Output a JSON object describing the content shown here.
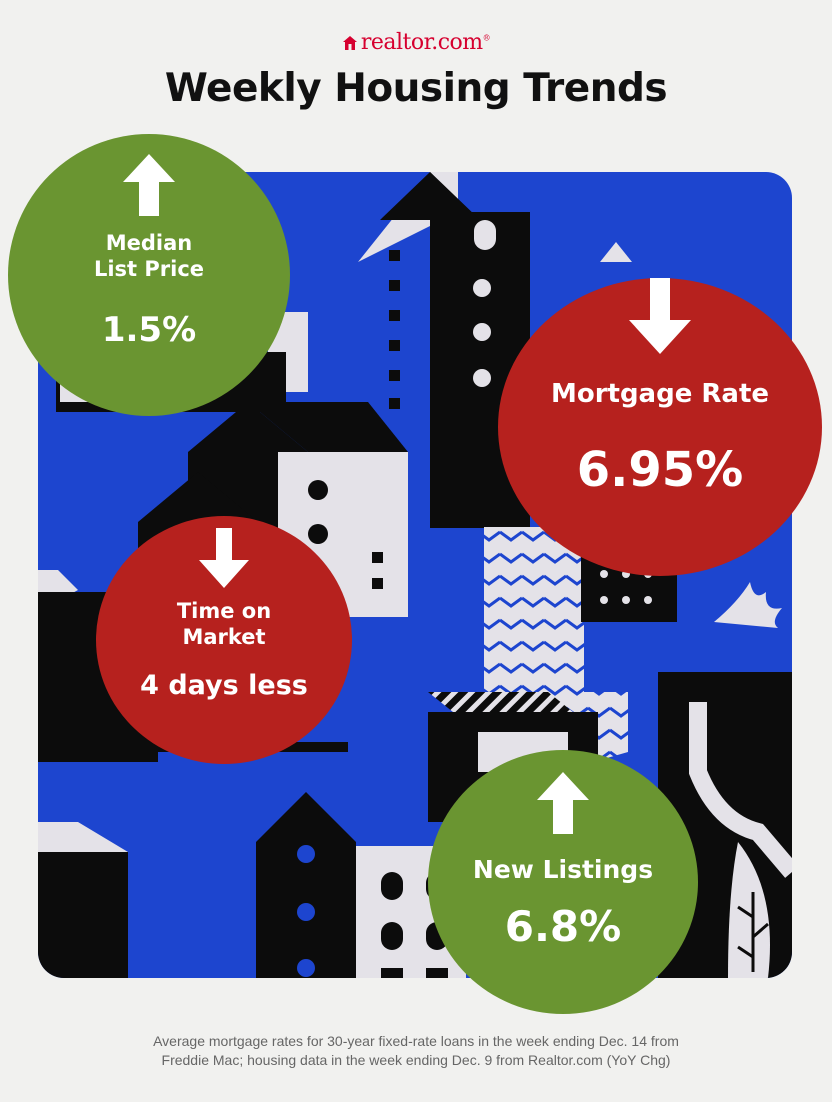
{
  "brand": {
    "name": "realtor.com",
    "color": "#d6002f",
    "icon": "house-logo-icon"
  },
  "title": "Weekly Housing Trends",
  "stats": {
    "median_list_price": {
      "label_line1": "Median",
      "label_line2": "List Price",
      "value": "1.5%",
      "direction": "up",
      "color": "#6a9531"
    },
    "mortgage_rate": {
      "label": "Mortgage Rate",
      "value": "6.95%",
      "direction": "down",
      "color": "#b6211e"
    },
    "time_on_market": {
      "label_line1": "Time on",
      "label_line2": "Market",
      "value": "4 days less",
      "direction": "down",
      "color": "#b6211e"
    },
    "new_listings": {
      "label": "New Listings",
      "value": "6.8%",
      "direction": "up",
      "color": "#6a9531"
    }
  },
  "footnote": {
    "line1": "Average mortgage rates for 30-year fixed-rate loans in the week ending Dec. 14 from",
    "line2": "Freddie Mac; housing data in the week ending Dec. 9 from Realtor.com (YoY Chg)"
  },
  "colors": {
    "background": "#f1f1ef",
    "illustration_blue": "#1d45cf",
    "building_black": "#0c0c0c",
    "building_light": "#e4e2e8"
  }
}
